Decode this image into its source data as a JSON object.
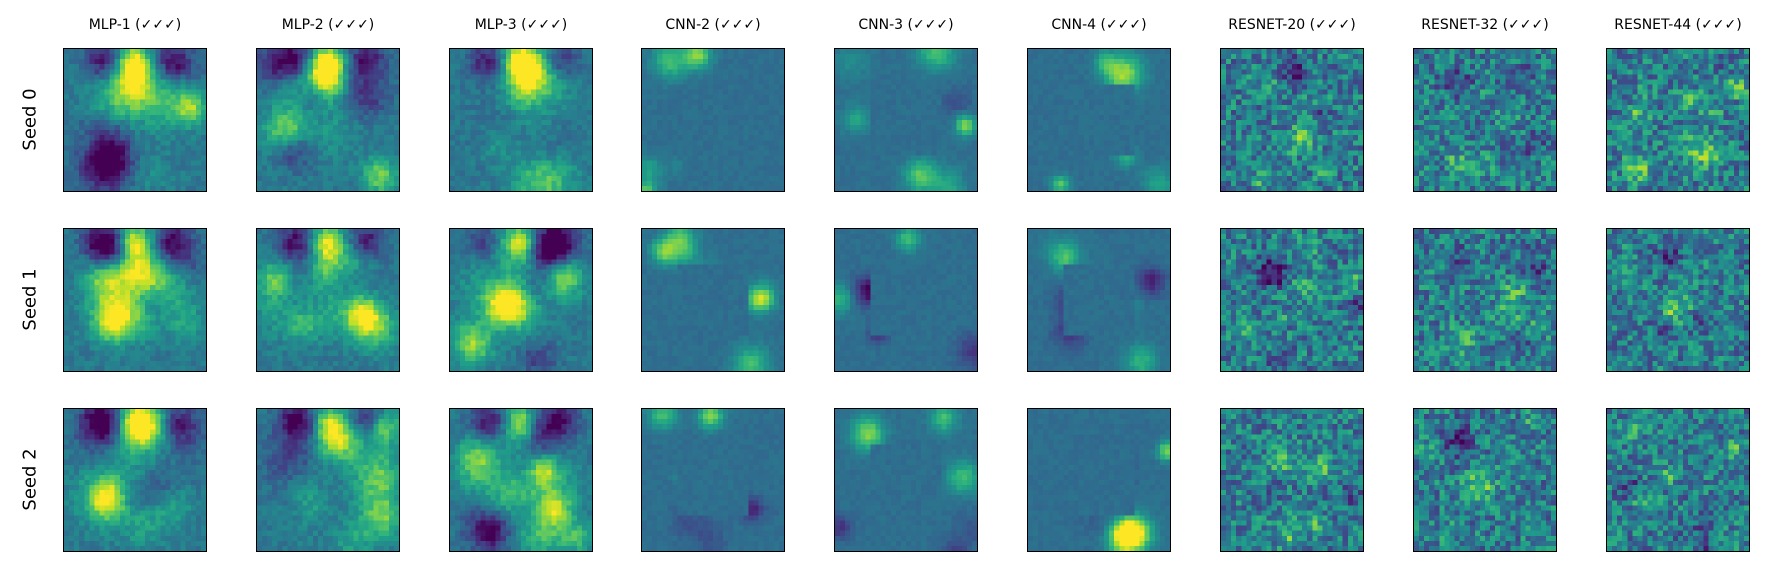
{
  "chart_data": {
    "type": "heatmap",
    "colormap": "viridis",
    "columns": [
      "MLP-1 (✓✓✓)",
      "MLP-2 (✓✓✓)",
      "MLP-3 (✓✓✓)",
      "CNN-2 (✓✓✓)",
      "CNN-3 (✓✓✓)",
      "CNN-4 (✓✓✓)",
      "RESNET-20 (✓✓✓)",
      "RESNET-32 (✓✓✓)",
      "RESNET-44 (✓✓✓)"
    ],
    "rows": [
      "Seed 0",
      "Seed 1",
      "Seed 2"
    ],
    "ticks": "none",
    "colors": {
      "viridis": [
        "#440154",
        "#482878",
        "#3e4989",
        "#31688e",
        "#26828e",
        "#1f9e89",
        "#35b779",
        "#6ece58",
        "#b5de2b",
        "#fde725"
      ]
    }
  }
}
